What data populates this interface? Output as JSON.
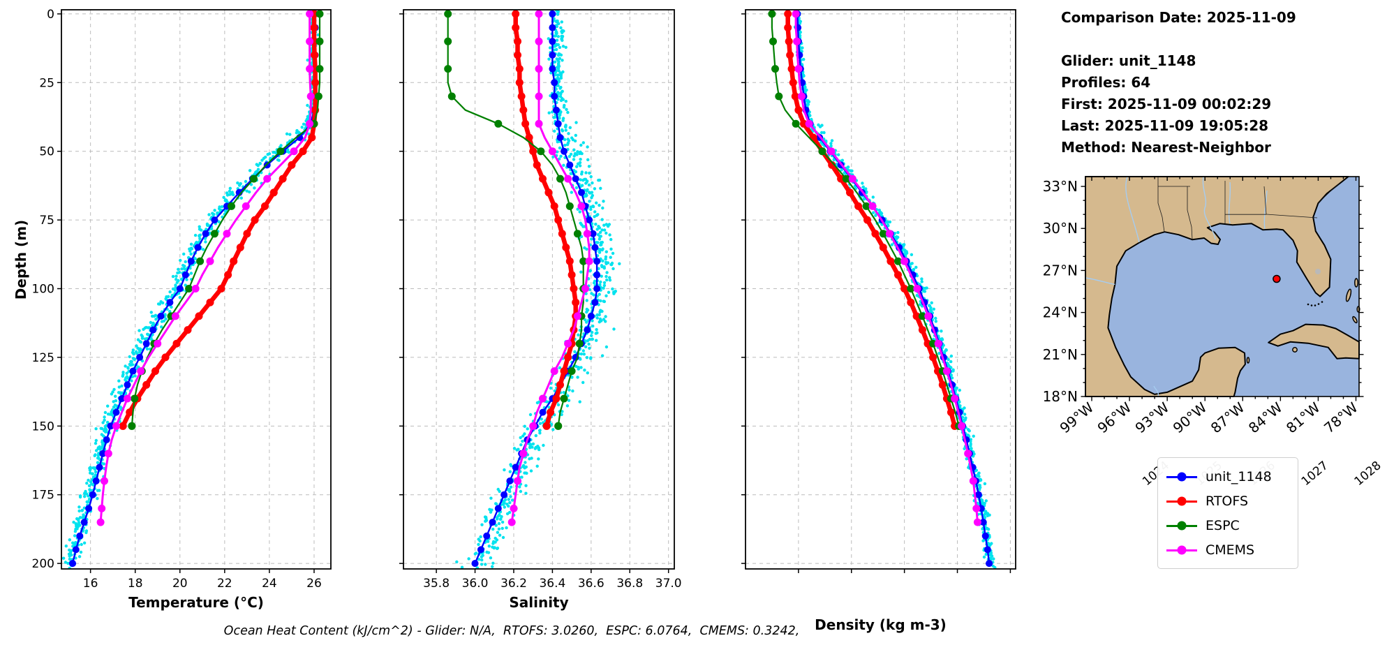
{
  "info_panel": {
    "lines": [
      "Comparison Date: 2025-11-09",
      "",
      "Glider: unit_1148",
      "Profiles: 64",
      "First: 2025-11-09 00:02:29",
      "Last: 2025-11-09 19:05:28",
      "Method: Nearest-Neighbor"
    ]
  },
  "ohc_annotation": "Ocean Heat Content (kJ/cm^2) - Glider: N/A,  RTOFS: 3.0260,  ESPC: 6.0764,  CMEMS: 0.3242,",
  "legend": {
    "items": [
      {
        "label": "unit_1148",
        "color": "#0000FF"
      },
      {
        "label": "RTOFS",
        "color": "#FF0000"
      },
      {
        "label": "ESPC",
        "color": "#008000"
      },
      {
        "label": "CMEMS",
        "color": "#FF00FF"
      }
    ]
  },
  "map": {
    "extent": {
      "lon_min": -99.5,
      "lon_max": -77.75,
      "lat_min": 18.0,
      "lat_max": 33.7
    },
    "lat_ticks": [
      {
        "value": 33,
        "label": "33°N"
      },
      {
        "value": 30,
        "label": "30°N"
      },
      {
        "value": 27,
        "label": "27°N"
      },
      {
        "value": 24,
        "label": "24°N"
      },
      {
        "value": 21,
        "label": "21°N"
      },
      {
        "value": 18,
        "label": "18°N"
      }
    ],
    "lon_ticks": [
      {
        "value": -99,
        "label": "99°W"
      },
      {
        "value": -96,
        "label": "96°W"
      },
      {
        "value": -93,
        "label": "93°W"
      },
      {
        "value": -90,
        "label": "90°W"
      },
      {
        "value": -87,
        "label": "87°W"
      },
      {
        "value": -84,
        "label": "84°W"
      },
      {
        "value": -81,
        "label": "81°W"
      },
      {
        "value": -78,
        "label": "78°W"
      }
    ],
    "glider_position": {
      "lon": -84.3,
      "lat": 26.4,
      "marker_color": "#FF0000"
    },
    "colors": {
      "land": "#D5B98E",
      "ocean": "#99B4DE",
      "coast": "#000000",
      "river": "#A6CCF0",
      "lake": "#B9B9B9"
    }
  },
  "chart_data": {
    "type": "line",
    "ylabel": "Depth (m)",
    "ylim": [
      -1.5,
      202
    ],
    "depth_ticks": [
      0,
      25,
      50,
      75,
      100,
      125,
      150,
      175,
      200
    ],
    "panels": [
      {
        "id": "temperature",
        "xlabel": "Temperature (°C)",
        "xlim": [
          14.7,
          26.75
        ],
        "xtick_values": [
          16,
          18,
          20,
          22,
          24,
          26
        ],
        "xtick_labels": [
          "16",
          "18",
          "20",
          "22",
          "24",
          "26"
        ],
        "rotate_xticks": false,
        "show_depth_labels": true,
        "value_key": "temperature"
      },
      {
        "id": "salinity",
        "xlabel": "Salinity",
        "xlim": [
          35.63,
          37.03
        ],
        "xtick_values": [
          35.8,
          36.0,
          36.2,
          36.4,
          36.6,
          36.8,
          37.0
        ],
        "xtick_labels": [
          "35.8",
          "36.0",
          "36.2",
          "36.4",
          "36.6",
          "36.8",
          "37.0"
        ],
        "rotate_xticks": false,
        "show_depth_labels": false,
        "value_key": "salinity"
      },
      {
        "id": "density",
        "xlabel": "Density (kg m-3)",
        "xlim": [
          1023.0,
          1028.1
        ],
        "xtick_values": [
          1024,
          1025,
          1026,
          1027,
          1028
        ],
        "xtick_labels": [
          "1024",
          "1025",
          "1026",
          "1027",
          "1028"
        ],
        "rotate_xticks": true,
        "show_depth_labels": false,
        "value_key": "density"
      }
    ],
    "series": [
      {
        "name": "unit_1148",
        "color": "#0000FF",
        "line_width": 2.4,
        "marker_size": 5,
        "marker_every": 1,
        "depths": [
          0,
          5,
          10,
          15,
          20,
          25,
          30,
          35,
          40,
          45,
          50,
          55,
          60,
          65,
          70,
          75,
          80,
          85,
          90,
          95,
          100,
          105,
          110,
          115,
          120,
          125,
          130,
          135,
          140,
          145,
          150,
          155,
          160,
          165,
          170,
          175,
          180,
          185,
          190,
          195,
          200
        ],
        "temperature": [
          26.05,
          26.05,
          26.05,
          26.05,
          26.05,
          26.05,
          26.05,
          26.0,
          25.85,
          25.35,
          24.6,
          23.9,
          23.25,
          22.65,
          22.1,
          21.55,
          21.15,
          20.8,
          20.5,
          20.25,
          20.0,
          19.55,
          19.15,
          18.8,
          18.5,
          18.2,
          17.9,
          17.65,
          17.4,
          17.15,
          16.9,
          16.72,
          16.55,
          16.4,
          16.25,
          16.1,
          15.92,
          15.72,
          15.52,
          15.35,
          15.2
        ],
        "salinity": [
          36.4,
          36.4,
          36.4,
          36.4,
          36.4,
          36.41,
          36.41,
          36.42,
          36.43,
          36.44,
          36.46,
          36.49,
          36.52,
          36.55,
          36.57,
          36.59,
          36.61,
          36.62,
          36.63,
          36.63,
          36.63,
          36.62,
          36.6,
          36.58,
          36.55,
          36.52,
          36.48,
          36.44,
          36.4,
          36.35,
          36.31,
          36.27,
          36.24,
          36.21,
          36.18,
          36.15,
          36.12,
          36.09,
          36.06,
          36.03,
          36.0
        ],
        "density": [
          1023.98,
          1023.99,
          1024.0,
          1024.02,
          1024.04,
          1024.07,
          1024.1,
          1024.14,
          1024.22,
          1024.4,
          1024.6,
          1024.8,
          1025.0,
          1025.2,
          1025.4,
          1025.58,
          1025.74,
          1025.9,
          1026.04,
          1026.16,
          1026.28,
          1026.38,
          1026.48,
          1026.57,
          1026.66,
          1026.74,
          1026.82,
          1026.9,
          1026.97,
          1027.04,
          1027.1,
          1027.17,
          1027.23,
          1027.29,
          1027.35,
          1027.4,
          1027.45,
          1027.49,
          1027.53,
          1027.57,
          1027.6
        ]
      },
      {
        "name": "RTOFS",
        "color": "#FF0000",
        "line_width": 6.5,
        "marker_size": 5.5,
        "marker_every": 1,
        "depths": [
          0,
          5,
          10,
          15,
          20,
          25,
          30,
          35,
          40,
          45,
          50,
          55,
          60,
          65,
          70,
          75,
          80,
          85,
          90,
          95,
          100,
          105,
          110,
          115,
          120,
          125,
          130,
          135,
          140,
          145,
          150
        ],
        "temperature": [
          26.0,
          26.0,
          26.0,
          26.02,
          26.05,
          26.05,
          26.05,
          26.05,
          26.0,
          25.9,
          25.5,
          25.0,
          24.6,
          24.2,
          23.8,
          23.35,
          23.0,
          22.7,
          22.4,
          22.15,
          21.85,
          21.35,
          20.85,
          20.35,
          19.85,
          19.35,
          18.9,
          18.5,
          18.1,
          17.75,
          17.45
        ],
        "salinity": [
          36.21,
          36.21,
          36.22,
          36.22,
          36.23,
          36.23,
          36.24,
          36.25,
          36.26,
          36.28,
          36.3,
          36.32,
          36.35,
          36.38,
          36.41,
          36.43,
          36.45,
          36.47,
          36.49,
          36.5,
          36.51,
          36.52,
          36.52,
          36.51,
          36.5,
          36.48,
          36.46,
          36.44,
          36.42,
          36.39,
          36.37
        ],
        "density": [
          1023.8,
          1023.8,
          1023.82,
          1023.84,
          1023.87,
          1023.9,
          1023.94,
          1024.0,
          1024.1,
          1024.28,
          1024.45,
          1024.63,
          1024.8,
          1024.97,
          1025.13,
          1025.3,
          1025.45,
          1025.6,
          1025.74,
          1025.88,
          1026.0,
          1026.12,
          1026.23,
          1026.34,
          1026.44,
          1026.54,
          1026.63,
          1026.72,
          1026.8,
          1026.88,
          1026.95
        ]
      },
      {
        "name": "ESPC",
        "color": "#008000",
        "line_width": 2.2,
        "marker_size": 5.5,
        "marker_every": 2,
        "depths": [
          0,
          5,
          10,
          15,
          20,
          25,
          30,
          35,
          40,
          45,
          50,
          55,
          60,
          65,
          70,
          75,
          80,
          85,
          90,
          95,
          100,
          105,
          110,
          115,
          120,
          125,
          130,
          135,
          140,
          145,
          150
        ],
        "temperature": [
          26.25,
          26.25,
          26.25,
          26.25,
          26.25,
          26.25,
          26.2,
          26.15,
          26.0,
          25.2,
          24.5,
          23.85,
          23.3,
          22.75,
          22.3,
          21.9,
          21.55,
          21.2,
          20.9,
          20.65,
          20.4,
          20.0,
          19.6,
          19.2,
          18.85,
          18.55,
          18.3,
          18.1,
          17.97,
          17.9,
          17.85
        ],
        "salinity": [
          35.86,
          35.86,
          35.86,
          35.86,
          35.86,
          35.86,
          35.88,
          35.95,
          36.12,
          36.25,
          36.34,
          36.4,
          36.44,
          36.47,
          36.49,
          36.51,
          36.53,
          36.55,
          36.56,
          36.56,
          36.56,
          36.56,
          36.55,
          36.55,
          36.54,
          36.53,
          36.5,
          36.48,
          36.46,
          36.44,
          36.43
        ],
        "density": [
          1023.5,
          1023.5,
          1023.52,
          1023.54,
          1023.56,
          1023.59,
          1023.63,
          1023.75,
          1023.95,
          1024.2,
          1024.45,
          1024.68,
          1024.9,
          1025.1,
          1025.28,
          1025.45,
          1025.6,
          1025.74,
          1025.88,
          1026.0,
          1026.12,
          1026.23,
          1026.34,
          1026.44,
          1026.54,
          1026.63,
          1026.72,
          1026.8,
          1026.88,
          1026.96,
          1027.03
        ]
      },
      {
        "name": "CMEMS",
        "color": "#FF00FF",
        "line_width": 3,
        "marker_size": 5.5,
        "marker_every": 2,
        "depths": [
          0,
          5,
          10,
          15,
          20,
          25,
          30,
          35,
          40,
          45,
          50,
          55,
          60,
          65,
          70,
          75,
          80,
          85,
          90,
          95,
          100,
          105,
          110,
          115,
          120,
          125,
          130,
          135,
          140,
          145,
          150,
          155,
          160,
          165,
          170,
          175,
          180,
          185
        ],
        "temperature": [
          25.8,
          25.8,
          25.8,
          25.8,
          25.8,
          25.82,
          25.85,
          25.85,
          25.8,
          25.6,
          25.1,
          24.5,
          23.9,
          23.4,
          22.95,
          22.5,
          22.1,
          21.7,
          21.35,
          21.0,
          20.7,
          20.25,
          19.8,
          19.4,
          19.0,
          18.6,
          18.25,
          17.95,
          17.65,
          17.4,
          17.15,
          16.95,
          16.8,
          16.7,
          16.62,
          16.55,
          16.5,
          16.45
        ],
        "salinity": [
          36.33,
          36.33,
          36.33,
          36.33,
          36.33,
          36.33,
          36.33,
          36.33,
          36.33,
          36.36,
          36.4,
          36.44,
          36.48,
          36.52,
          36.55,
          36.57,
          36.58,
          36.59,
          36.59,
          36.58,
          36.57,
          36.55,
          36.53,
          36.51,
          36.48,
          36.45,
          36.41,
          36.38,
          36.35,
          36.32,
          36.3,
          36.27,
          36.25,
          36.23,
          36.22,
          36.21,
          36.2,
          36.19
        ],
        "density": [
          1023.95,
          1023.95,
          1023.97,
          1023.98,
          1024.0,
          1024.02,
          1024.06,
          1024.1,
          1024.2,
          1024.42,
          1024.62,
          1024.82,
          1025.02,
          1025.22,
          1025.4,
          1025.57,
          1025.72,
          1025.87,
          1026.0,
          1026.12,
          1026.24,
          1026.35,
          1026.45,
          1026.55,
          1026.64,
          1026.72,
          1026.8,
          1026.88,
          1026.95,
          1027.02,
          1027.08,
          1027.14,
          1027.2,
          1027.25,
          1027.3,
          1027.33,
          1027.36,
          1027.38
        ]
      }
    ],
    "glider_scatter": {
      "source": "unit_1148",
      "color": "#00E2EE",
      "radius": 2.2,
      "points_per_meter": 4,
      "seed": 7,
      "sigma": {
        "temperature": 0.17,
        "salinity": 0.042,
        "density": 0.045
      },
      "offset": {
        "temperature": -0.1,
        "salinity": 0.02,
        "density": 0.02
      },
      "depth_jitter": 2.5
    }
  }
}
